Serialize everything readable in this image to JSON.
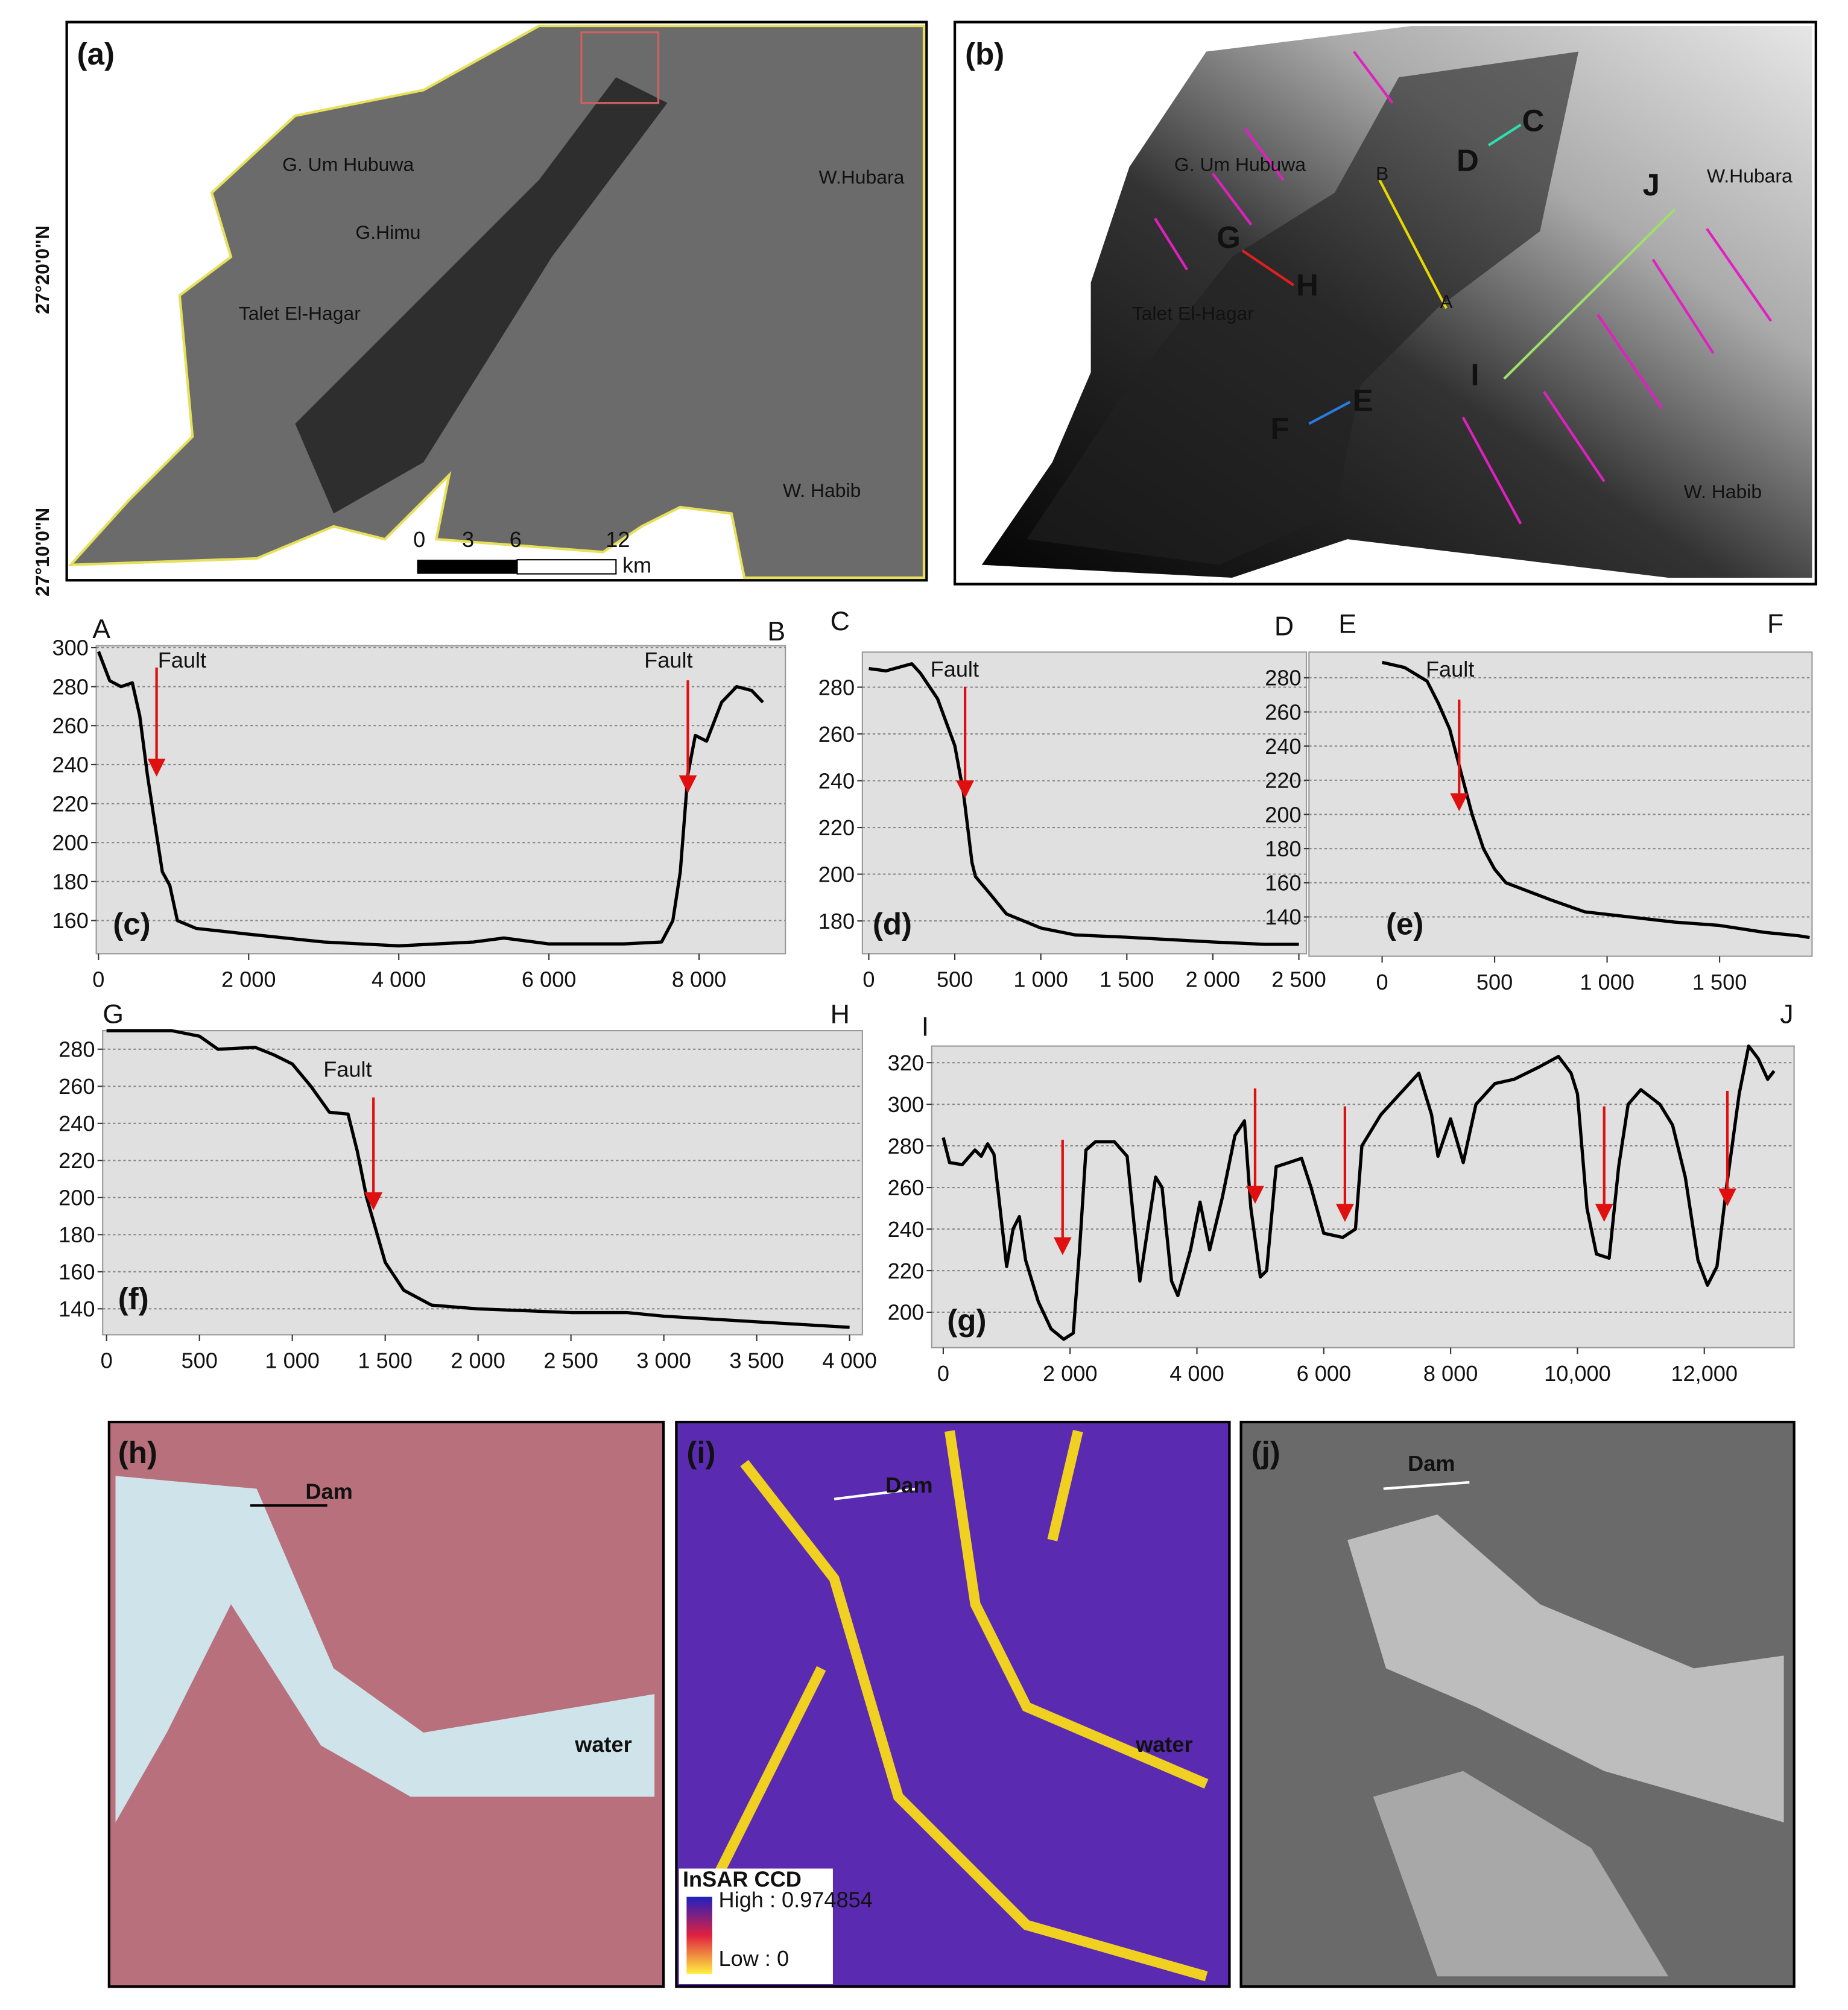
{
  "panels": {
    "a": {
      "label": "(a)",
      "places": [
        "G. Um Hubuwa",
        "G.Himu",
        "Talet El-Hagar",
        "W.Hubara",
        "W. Habib"
      ],
      "latitudes": [
        "27°20'0\"N",
        "27°10'0\"N"
      ],
      "scale_bar": {
        "ticks": [
          0,
          3,
          6,
          12
        ],
        "unit": "km"
      }
    },
    "b": {
      "label": "(b)",
      "places": [
        "G. Um Hubuwa",
        "Talet El-Hagar",
        "W.Hubara",
        "W. Habib"
      ],
      "profile_ends": [
        "A",
        "B",
        "C",
        "D",
        "E",
        "F",
        "G",
        "H",
        "I",
        "J"
      ]
    },
    "h": {
      "label": "(h)",
      "annotations": [
        "Dam",
        "water"
      ]
    },
    "i": {
      "label": "(i)",
      "annotations": [
        "Dam",
        "water"
      ],
      "legend": {
        "title": "InSAR CCD",
        "high": "High : 0.974854",
        "low": "Low : 0"
      }
    },
    "j": {
      "label": "(j)",
      "annotations": [
        "Dam"
      ]
    }
  },
  "chart_data": [
    {
      "type": "line",
      "panel_label": "(c)",
      "ends": [
        "A",
        "B"
      ],
      "annotations": [
        "Fault",
        "Fault"
      ],
      "color": "#000000",
      "grid": true,
      "x": [
        0,
        150,
        300,
        450,
        550,
        650,
        750,
        850,
        950,
        1050,
        1300,
        2000,
        3000,
        4000,
        5000,
        5400,
        6000,
        7000,
        7500,
        7650,
        7750,
        7850,
        7950,
        8100,
        8300,
        8500,
        8700,
        8850
      ],
      "values": [
        298,
        283,
        280,
        282,
        265,
        235,
        210,
        185,
        178,
        160,
        156,
        153,
        149,
        147,
        149,
        151,
        148,
        148,
        149,
        160,
        185,
        235,
        255,
        252,
        272,
        280,
        278,
        272
      ],
      "xlim": [
        -30,
        9150
      ],
      "ylim": [
        143,
        301
      ],
      "xticks": [
        0,
        {
          "value": 2000,
          "label": "2 000"
        },
        {
          "value": 4000,
          "label": "4 000"
        },
        {
          "value": 6000,
          "label": "6 000"
        },
        {
          "value": 8000,
          "label": "8 000"
        }
      ],
      "yticks": [
        160,
        180,
        200,
        220,
        240,
        260,
        280,
        300
      ]
    },
    {
      "type": "line",
      "panel_label": "(d)",
      "ends": [
        "C",
        "D"
      ],
      "annotations": [
        "Fault"
      ],
      "color": "#000000",
      "grid": true,
      "x": [
        0,
        100,
        200,
        250,
        300,
        400,
        500,
        550,
        600,
        620,
        700,
        800,
        1000,
        1200,
        1500,
        2000,
        2300,
        2500
      ],
      "values": [
        288,
        287,
        289,
        290,
        286,
        275,
        255,
        235,
        205,
        199,
        192,
        183,
        177,
        174,
        173,
        171,
        170,
        170
      ],
      "xlim": [
        -37,
        2544
      ],
      "ylim": [
        166,
        295
      ],
      "xticks": [
        0,
        500,
        {
          "value": 1000,
          "label": "1 000"
        },
        {
          "value": 1500,
          "label": "1 500"
        },
        {
          "value": 2000,
          "label": "2 000"
        },
        {
          "value": 2500,
          "label": "2 500"
        }
      ],
      "yticks": [
        180,
        200,
        220,
        240,
        260,
        280
      ]
    },
    {
      "type": "line",
      "panel_label": "(e)",
      "ends": [
        "E",
        "F"
      ],
      "annotations": [
        "Fault"
      ],
      "color": "#000000",
      "grid": true,
      "x": [
        0,
        100,
        200,
        250,
        300,
        350,
        400,
        450,
        500,
        550,
        650,
        750,
        900,
        1100,
        1300,
        1500,
        1700,
        1850,
        1900
      ],
      "values": [
        289,
        286,
        278,
        265,
        250,
        225,
        200,
        180,
        168,
        160,
        155,
        150,
        143,
        140,
        137,
        135,
        131,
        129,
        128
      ],
      "xlim": [
        -325,
        1911
      ],
      "ylim": [
        117,
        295
      ],
      "xticks": [
        0,
        500,
        {
          "value": 1000,
          "label": "1 000"
        },
        {
          "value": 1500,
          "label": "1 500"
        }
      ],
      "yticks": [
        140,
        160,
        180,
        200,
        220,
        240,
        260,
        280
      ]
    },
    {
      "type": "line",
      "panel_label": "(f)",
      "ends": [
        "G",
        "H"
      ],
      "annotations": [
        "Fault"
      ],
      "color": "#000000",
      "grid": true,
      "x": [
        0,
        200,
        350,
        500,
        600,
        800,
        900,
        1000,
        1100,
        1200,
        1300,
        1350,
        1400,
        1500,
        1600,
        1750,
        2000,
        2500,
        2800,
        3000,
        3500,
        4000
      ],
      "values": [
        290,
        290,
        290,
        287,
        280,
        281,
        277,
        272,
        260,
        246,
        245,
        225,
        200,
        165,
        150,
        142,
        140,
        138,
        138,
        136,
        133,
        130
      ],
      "xlim": [
        -21,
        4069
      ],
      "ylim": [
        126,
        290
      ],
      "xticks": [
        0,
        500,
        {
          "value": 1000,
          "label": "1 000"
        },
        {
          "value": 1500,
          "label": "1 500"
        },
        {
          "value": 2000,
          "label": "2 000"
        },
        {
          "value": 2500,
          "label": "2 500"
        },
        {
          "value": 3000,
          "label": "3 000"
        },
        {
          "value": 3500,
          "label": "3 500"
        },
        {
          "value": 4000,
          "label": "4 000"
        }
      ],
      "yticks": [
        140,
        160,
        180,
        200,
        220,
        240,
        260,
        280
      ]
    },
    {
      "type": "line",
      "panel_label": "(g)",
      "ends": [
        "I",
        "J"
      ],
      "annotations": [],
      "color": "#000000",
      "grid": true,
      "x": [
        0,
        100,
        300,
        500,
        600,
        700,
        800,
        1000,
        1100,
        1200,
        1300,
        1500,
        1700,
        1900,
        2050,
        2150,
        2250,
        2400,
        2700,
        2900,
        3100,
        3200,
        3350,
        3450,
        3600,
        3700,
        3900,
        4050,
        4200,
        4400,
        4600,
        4750,
        4850,
        5000,
        5100,
        5250,
        5450,
        5650,
        5800,
        6000,
        6300,
        6500,
        6600,
        6900,
        7200,
        7500,
        7700,
        7800,
        8000,
        8200,
        8400,
        8700,
        9000,
        9400,
        9700,
        9900,
        10000,
        10150,
        10300,
        10500,
        10650,
        10800,
        11000,
        11300,
        11500,
        11700,
        11900,
        12050,
        12200,
        12350,
        12550,
        12700,
        12850,
        13000,
        13100
      ],
      "values": [
        284,
        272,
        271,
        278,
        275,
        281,
        276,
        222,
        240,
        246,
        225,
        205,
        192,
        187,
        190,
        230,
        278,
        282,
        282,
        275,
        215,
        235,
        265,
        260,
        215,
        208,
        230,
        253,
        230,
        255,
        285,
        292,
        250,
        217,
        220,
        270,
        272,
        274,
        260,
        238,
        236,
        240,
        280,
        295,
        305,
        315,
        295,
        275,
        293,
        272,
        300,
        310,
        312,
        318,
        323,
        315,
        305,
        250,
        228,
        226,
        270,
        300,
        307,
        300,
        290,
        265,
        225,
        213,
        222,
        260,
        305,
        328,
        322,
        312,
        316
      ],
      "xlim": [
        -182,
        13416
      ],
      "ylim": [
        183,
        328
      ],
      "xticks": [
        0,
        {
          "value": 2000,
          "label": "2 000"
        },
        {
          "value": 4000,
          "label": "4 000"
        },
        {
          "value": 6000,
          "label": "6 000"
        },
        {
          "value": 8000,
          "label": "8 000"
        },
        {
          "value": 10000,
          "label": "10,000"
        },
        {
          "value": 12000,
          "label": "12,000"
        }
      ],
      "yticks": [
        200,
        220,
        240,
        260,
        280,
        300,
        320
      ]
    }
  ]
}
